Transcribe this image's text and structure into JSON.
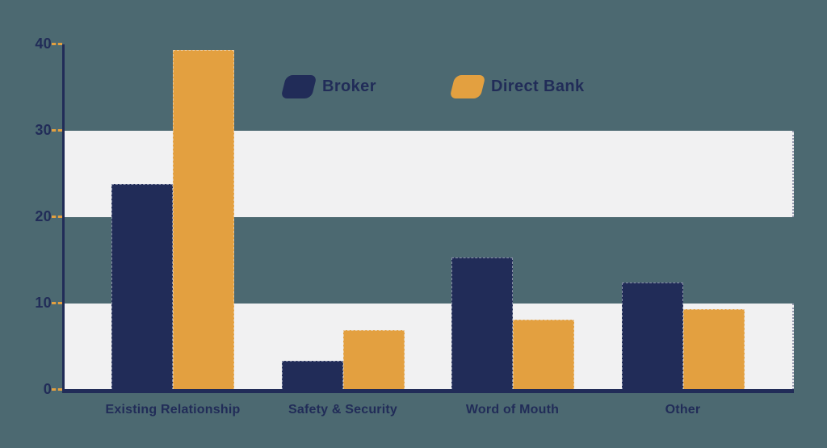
{
  "chart_data": {
    "type": "bar",
    "title": "",
    "categories": [
      "Existing Relationship",
      "Safety & Security",
      "Word of Mouth",
      "Other"
    ],
    "series": [
      {
        "name": "Broker",
        "color": "#212C58",
        "values": [
          23.8,
          3.4,
          15.3,
          12.4
        ]
      },
      {
        "name": "Direct Bank",
        "color": "#E3A040",
        "values": [
          39.3,
          6.9,
          8.1,
          9.3
        ]
      }
    ],
    "y_ticks": [
      0,
      10,
      20,
      30,
      40
    ],
    "ylim": [
      0,
      40
    ],
    "xlabel": "",
    "ylabel": "",
    "legend": {
      "position": "top-center",
      "entries": [
        "Broker",
        "Direct Bank"
      ]
    },
    "grid": {
      "style": "alternating-horizontal-bands",
      "band_ranges": [
        [
          0,
          10
        ],
        [
          20,
          30
        ]
      ],
      "band_color": "#F1F1F2"
    },
    "colors": {
      "background": "#4C6971",
      "axis": "#212C58",
      "tick_dash": "#E3A040",
      "label_text": "#212C58"
    }
  }
}
